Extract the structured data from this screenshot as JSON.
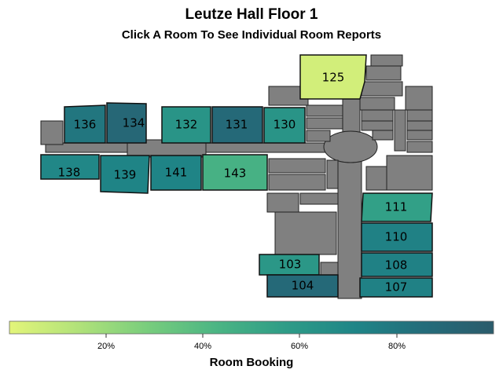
{
  "title": "Leutze Hall Floor 1",
  "subtitle": "Click A Room To See Individual Room Reports",
  "legend": {
    "title": "Room Booking",
    "ticks": [
      "20%",
      "40%",
      "60%",
      "80%"
    ],
    "colors": [
      "#e3f57a",
      "#b1e27a",
      "#78cd7d",
      "#4bb584",
      "#2e9c87",
      "#1f8587",
      "#246c7a",
      "#2b5b6b"
    ]
  },
  "rooms": [
    {
      "id": "125",
      "label": "125",
      "booking": 0.05
    },
    {
      "id": "136",
      "label": "136",
      "booking": 0.8
    },
    {
      "id": "134",
      "label": "134",
      "booking": 0.9
    },
    {
      "id": "132",
      "label": "132",
      "booking": 0.62
    },
    {
      "id": "131",
      "label": "131",
      "booking": 0.88
    },
    {
      "id": "130",
      "label": "130",
      "booking": 0.62
    },
    {
      "id": "138",
      "label": "138",
      "booking": 0.7
    },
    {
      "id": "139",
      "label": "139",
      "booking": 0.72
    },
    {
      "id": "141",
      "label": "141",
      "booking": 0.72
    },
    {
      "id": "143",
      "label": "143",
      "booking": 0.45
    },
    {
      "id": "111",
      "label": "111",
      "booking": 0.55
    },
    {
      "id": "110",
      "label": "110",
      "booking": 0.74
    },
    {
      "id": "103",
      "label": "103",
      "booking": 0.6
    },
    {
      "id": "108",
      "label": "108",
      "booking": 0.74
    },
    {
      "id": "104",
      "label": "104",
      "booking": 0.88
    },
    {
      "id": "107",
      "label": "107",
      "booking": 0.74
    }
  ]
}
